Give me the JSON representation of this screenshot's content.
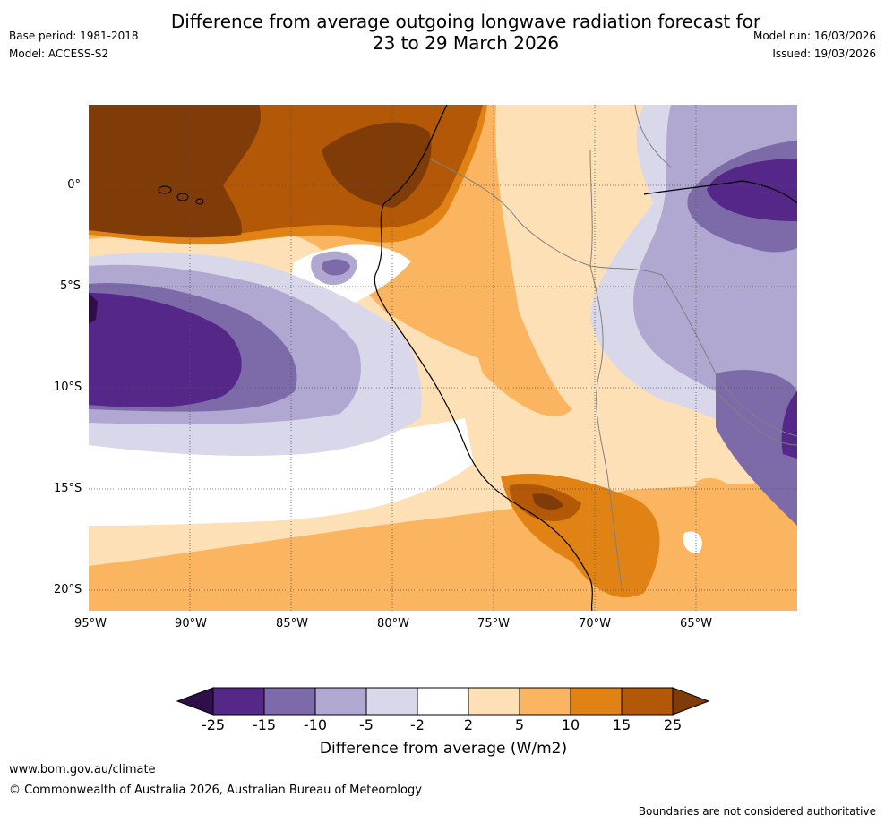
{
  "title": {
    "line1": "Difference from average outgoing longwave radiation forecast for",
    "line2": "23 to 29 March 2026"
  },
  "meta": {
    "base_period": "Base period: 1981-2018",
    "model": "Model: ACCESS-S2",
    "model_run": "Model run: 16/03/2026",
    "issued": "Issued: 19/03/2026"
  },
  "axes": {
    "latitudes": [
      "0°",
      "5°S",
      "10°S",
      "15°S",
      "20°S"
    ],
    "longitudes": [
      "95°W",
      "90°W",
      "85°W",
      "80°W",
      "75°W",
      "70°W",
      "65°W"
    ]
  },
  "colorbar": {
    "ticks": [
      "-25",
      "-15",
      "-10",
      "-5",
      "-2",
      "2",
      "5",
      "10",
      "15",
      "25"
    ],
    "colors": [
      "#2e0f4a",
      "#542788",
      "#7d6aa8",
      "#b0a8d1",
      "#d9d8ea",
      "#ffffff",
      "#fee0b6",
      "#fbb45f",
      "#e08214",
      "#b35806",
      "#7f3b08"
    ],
    "label": "Difference from average (W/m2)"
  },
  "footer": {
    "url": "www.bom.gov.au/climate",
    "copyright": "© Commonwealth of Australia 2026, Australian Bureau of Meteorology",
    "boundaries": "Boundaries are not considered authoritative"
  }
}
